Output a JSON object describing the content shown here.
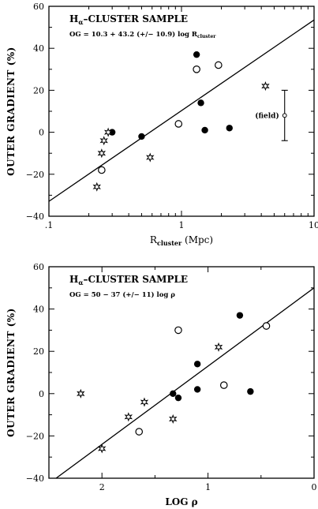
{
  "chart_data": [
    {
      "type": "scatter",
      "title": "Hα–CLUSTER SAMPLE",
      "title_main": "H",
      "title_sub": "α",
      "title_rest": "–CLUSTER SAMPLE",
      "equation_main": "OG = 10.3 + 43.2 (+/− 10.9) log R",
      "equation_sub": "cluster",
      "ylabel": "OUTER GRADIENT (%)",
      "xlabel_main": "R",
      "xlabel_sub": "cluster",
      "xlabel_rest": " (Mpc)",
      "x_scale": "log",
      "xlim": [
        0.1,
        10
      ],
      "ylim": [
        -40,
        60
      ],
      "x_tick_labels": [
        ".1",
        "1",
        "10"
      ],
      "y_tick_labels": [
        "−40",
        "−20",
        "0",
        "20",
        "40",
        "60"
      ],
      "x_tick_values": [
        0.1,
        1,
        10
      ],
      "y_tick_values": [
        -40,
        -20,
        0,
        20,
        40,
        60
      ],
      "fit_line": {
        "slope": 43.2,
        "intercept": 10.3
      },
      "series": [
        {
          "marker": "filled-circle",
          "points": [
            [
              0.3,
              0
            ],
            [
              0.5,
              -2
            ],
            [
              1.3,
              37
            ],
            [
              1.4,
              14
            ],
            [
              1.5,
              1
            ],
            [
              2.3,
              2
            ]
          ]
        },
        {
          "marker": "open-circle",
          "points": [
            [
              0.25,
              -18
            ],
            [
              0.95,
              4
            ],
            [
              1.3,
              30
            ],
            [
              1.9,
              32
            ]
          ]
        },
        {
          "marker": "star",
          "points": [
            [
              0.23,
              -26
            ],
            [
              0.25,
              -10
            ],
            [
              0.26,
              -4
            ],
            [
              0.28,
              0
            ],
            [
              0.58,
              -12
            ],
            [
              4.3,
              22
            ]
          ]
        }
      ],
      "field_point": {
        "label": "(field)",
        "x": 6.0,
        "y": 8,
        "err_low": -4,
        "err_high": 20
      }
    },
    {
      "type": "scatter",
      "title": "Hα–CLUSTER SAMPLE",
      "title_main": "H",
      "title_sub": "α",
      "title_rest": "–CLUSTER SAMPLE",
      "equation_main": "OG = 50 − 37 (+/− 11) log ρ",
      "ylabel": "OUTER GRADIENT (%)",
      "xlabel": "LOG ρ",
      "x_reversed": true,
      "xlim": [
        2.5,
        0
      ],
      "ylim": [
        -40,
        60
      ],
      "x_tick_labels": [
        "2",
        "1",
        "0"
      ],
      "y_tick_labels": [
        "−40",
        "−20",
        "0",
        "20",
        "40",
        "60"
      ],
      "x_tick_values": [
        2,
        1,
        0
      ],
      "y_tick_values": [
        -40,
        -20,
        0,
        20,
        40,
        60
      ],
      "fit_line": {
        "slope": -37,
        "intercept": 50
      },
      "series": [
        {
          "marker": "filled-circle",
          "points": [
            [
              1.33,
              0
            ],
            [
              1.28,
              -2
            ],
            [
              1.1,
              14
            ],
            [
              1.1,
              2
            ],
            [
              0.7,
              37
            ],
            [
              0.6,
              1
            ]
          ]
        },
        {
          "marker": "open-circle",
          "points": [
            [
              1.28,
              30
            ],
            [
              1.65,
              -18
            ],
            [
              0.85,
              4
            ],
            [
              0.45,
              32
            ]
          ]
        },
        {
          "marker": "star",
          "points": [
            [
              2.2,
              0
            ],
            [
              2.0,
              -26
            ],
            [
              1.75,
              -11
            ],
            [
              1.6,
              -4
            ],
            [
              1.33,
              -12
            ],
            [
              0.9,
              22
            ]
          ]
        }
      ]
    }
  ]
}
